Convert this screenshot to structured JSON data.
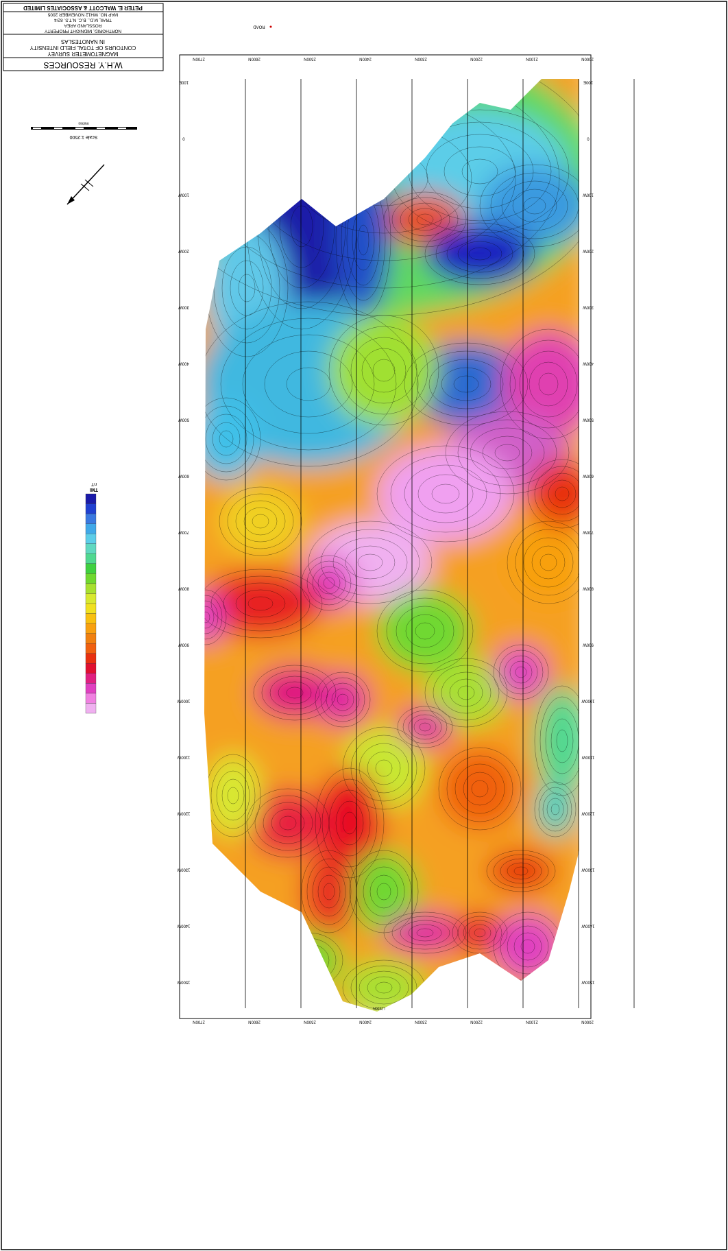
{
  "title_block": {
    "client": "W.H.Y. RESOURCES",
    "survey": [
      "MAGNETOMETER SURVEY",
      "CONTOURS OF TOTAL FIELD INTENSITY",
      "IN NANOTESLAS"
    ],
    "location": [
      "NORTHGRID, MIDNIGHT PROPERTY",
      "ROSSLAND AREA",
      "TRAIL M.D., B.C.   N.T.S. 82/4",
      "MAP NO. WH12   NOVEMBER 2005"
    ],
    "contractor": "PETER E. WALCOTT & ASSOCIATES LIMITED"
  },
  "scale": {
    "label": "Scale 1:2500",
    "units": "metres"
  },
  "legend": {
    "title": "TMI",
    "unit": "nT"
  },
  "map": {
    "road_label": "ROAD",
    "line_label": "L2400N",
    "northings": [
      "2700N",
      "2600N",
      "2500N",
      "2400N",
      "2300N",
      "2200N",
      "2100N",
      "2000N"
    ],
    "eastings": [
      "100E",
      "0",
      "100W",
      "200W",
      "300W",
      "400W",
      "500W",
      "600W",
      "700W",
      "800W",
      "900W",
      "1000W",
      "1100W",
      "1200W",
      "1300W",
      "1400W",
      "1500W"
    ]
  }
}
